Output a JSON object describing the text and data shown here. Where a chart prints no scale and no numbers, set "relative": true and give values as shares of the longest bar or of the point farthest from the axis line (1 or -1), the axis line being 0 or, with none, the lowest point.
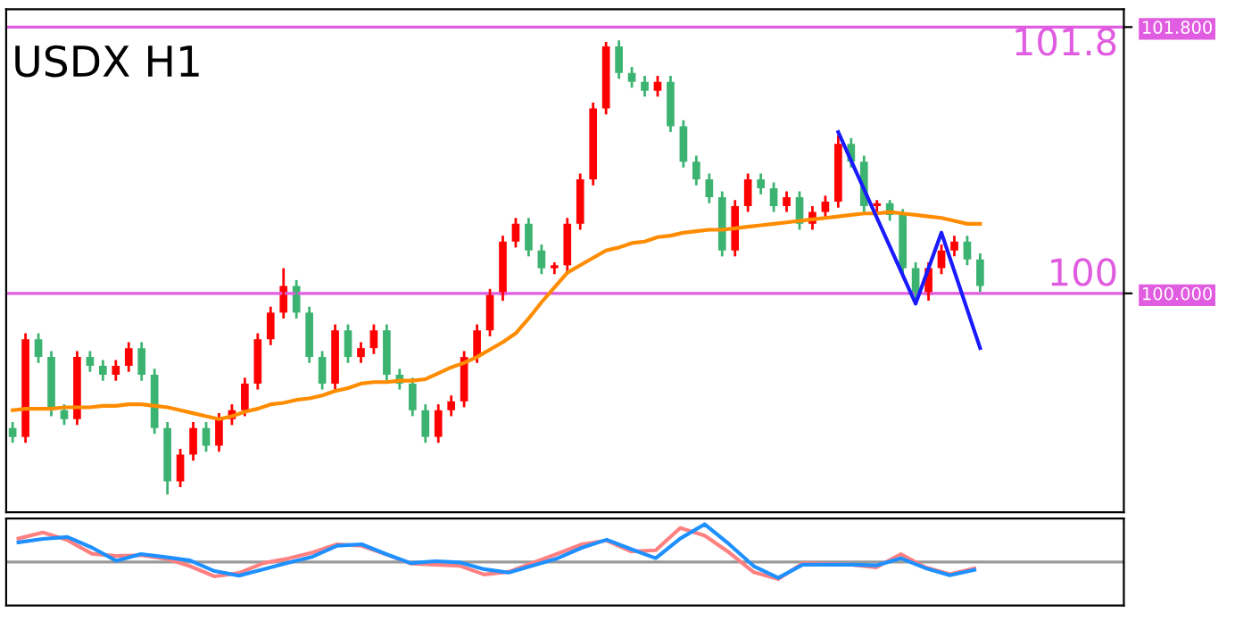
{
  "chart_data": [
    {
      "type": "candlestick",
      "title": "USDX H1",
      "categories": [
        null,
        null,
        null,
        null,
        null,
        null,
        null,
        null,
        null,
        null,
        null,
        null,
        null,
        null,
        null,
        null,
        null,
        null,
        null,
        null,
        null,
        null,
        null,
        null,
        null,
        null,
        null,
        null,
        null,
        null,
        null,
        null,
        null,
        null,
        null,
        null,
        null,
        null,
        null,
        null,
        null,
        null,
        null,
        null,
        null,
        null,
        null,
        null,
        null,
        null,
        null,
        null,
        null,
        null,
        null,
        null,
        null,
        null,
        null,
        null,
        null,
        null,
        null,
        null,
        null,
        null,
        null,
        null,
        null,
        null,
        null,
        null,
        null,
        null,
        null,
        null
      ],
      "ohlc": [
        [
          99.09,
          99.13,
          98.99,
          99.03
        ],
        [
          99.03,
          99.73,
          98.99,
          99.69
        ],
        [
          99.69,
          99.73,
          99.53,
          99.57
        ],
        [
          99.57,
          99.61,
          99.17,
          99.21
        ],
        [
          99.21,
          99.25,
          99.11,
          99.15
        ],
        [
          99.15,
          99.61,
          99.11,
          99.57
        ],
        [
          99.57,
          99.61,
          99.47,
          99.51
        ],
        [
          99.51,
          99.55,
          99.41,
          99.45
        ],
        [
          99.45,
          99.55,
          99.41,
          99.51
        ],
        [
          99.51,
          99.67,
          99.47,
          99.63
        ],
        [
          99.63,
          99.67,
          99.41,
          99.45
        ],
        [
          99.45,
          99.49,
          99.05,
          99.09
        ],
        [
          99.09,
          99.13,
          98.64,
          98.73
        ],
        [
          98.73,
          98.95,
          98.69,
          98.91
        ],
        [
          98.91,
          99.13,
          98.87,
          99.09
        ],
        [
          99.09,
          99.13,
          98.93,
          98.97
        ],
        [
          98.97,
          99.19,
          98.93,
          99.15
        ],
        [
          99.15,
          99.25,
          99.11,
          99.21
        ],
        [
          99.21,
          99.43,
          99.17,
          99.39
        ],
        [
          99.39,
          99.73,
          99.35,
          99.69
        ],
        [
          99.69,
          99.91,
          99.65,
          99.87
        ],
        [
          99.87,
          100.17,
          99.83,
          100.05
        ],
        [
          100.05,
          100.09,
          99.83,
          99.87
        ],
        [
          99.87,
          99.91,
          99.53,
          99.57
        ],
        [
          99.57,
          99.61,
          99.35,
          99.39
        ],
        [
          99.39,
          99.79,
          99.35,
          99.75
        ],
        [
          99.75,
          99.79,
          99.53,
          99.57
        ],
        [
          99.57,
          99.67,
          99.53,
          99.63
        ],
        [
          99.63,
          99.79,
          99.59,
          99.75
        ],
        [
          99.75,
          99.79,
          99.41,
          99.45
        ],
        [
          99.45,
          99.49,
          99.35,
          99.39
        ],
        [
          99.39,
          99.43,
          99.17,
          99.21
        ],
        [
          99.21,
          99.25,
          98.99,
          99.03
        ],
        [
          99.03,
          99.25,
          98.99,
          99.21
        ],
        [
          99.21,
          99.31,
          99.17,
          99.27
        ],
        [
          99.27,
          99.61,
          99.23,
          99.57
        ],
        [
          99.57,
          99.79,
          99.53,
          99.75
        ],
        [
          99.75,
          100.03,
          99.71,
          99.99
        ],
        [
          99.99,
          100.39,
          99.95,
          100.35
        ],
        [
          100.35,
          100.51,
          100.31,
          100.47
        ],
        [
          100.47,
          100.51,
          100.25,
          100.29
        ],
        [
          100.29,
          100.33,
          100.13,
          100.17
        ],
        [
          100.17,
          100.21,
          100.13,
          100.19
        ],
        [
          100.19,
          100.51,
          100.13,
          100.47
        ],
        [
          100.47,
          100.81,
          100.43,
          100.77
        ],
        [
          100.77,
          101.29,
          100.73,
          101.25
        ],
        [
          101.25,
          101.7,
          101.21,
          101.67
        ],
        [
          101.67,
          101.71,
          101.45,
          101.49
        ],
        [
          101.49,
          101.53,
          101.39,
          101.43
        ],
        [
          101.43,
          101.47,
          101.33,
          101.37
        ],
        [
          101.37,
          101.47,
          101.33,
          101.43
        ],
        [
          101.43,
          101.47,
          101.09,
          101.13
        ],
        [
          101.13,
          101.17,
          100.85,
          100.89
        ],
        [
          100.89,
          100.93,
          100.73,
          100.77
        ],
        [
          100.77,
          100.81,
          100.61,
          100.65
        ],
        [
          100.65,
          100.69,
          100.25,
          100.29
        ],
        [
          100.29,
          100.63,
          100.25,
          100.59
        ],
        [
          100.59,
          100.81,
          100.55,
          100.77
        ],
        [
          100.77,
          100.81,
          100.67,
          100.71
        ],
        [
          100.71,
          100.75,
          100.55,
          100.59
        ],
        [
          100.59,
          100.69,
          100.55,
          100.65
        ],
        [
          100.65,
          100.69,
          100.43,
          100.47
        ],
        [
          100.47,
          100.59,
          100.43,
          100.55
        ],
        [
          100.55,
          100.66,
          100.51,
          100.62
        ],
        [
          100.62,
          101.07,
          100.58,
          101.01
        ],
        [
          101.01,
          101.05,
          100.85,
          100.89
        ],
        [
          100.89,
          100.93,
          100.55,
          100.59
        ],
        [
          100.59,
          100.63,
          100.55,
          100.61
        ],
        [
          100.61,
          100.63,
          100.49,
          100.53
        ],
        [
          100.53,
          100.57,
          100.13,
          100.17
        ],
        [
          100.17,
          100.21,
          99.96,
          99.99
        ],
        [
          99.99,
          100.21,
          99.95,
          100.17
        ],
        [
          100.17,
          100.33,
          100.13,
          100.29
        ],
        [
          100.29,
          100.39,
          100.25,
          100.35
        ],
        [
          100.35,
          100.39,
          100.19,
          100.23
        ],
        [
          100.23,
          100.27,
          100.01,
          100.05
        ]
      ],
      "colors": [
        "#3cb371",
        "#ff0000",
        "#3cb371",
        "#3cb371",
        "#3cb371",
        "#ff0000",
        "#3cb371",
        "#3cb371",
        "#ff0000",
        "#ff0000",
        "#3cb371",
        "#3cb371",
        "#3cb371",
        "#ff0000",
        "#ff0000",
        "#3cb371",
        "#ff0000",
        "#ff0000",
        "#ff0000",
        "#ff0000",
        "#ff0000",
        "#ff0000",
        "#3cb371",
        "#3cb371",
        "#3cb371",
        "#ff0000",
        "#3cb371",
        "#ff0000",
        "#ff0000",
        "#3cb371",
        "#3cb371",
        "#3cb371",
        "#3cb371",
        "#ff0000",
        "#ff0000",
        "#ff0000",
        "#ff0000",
        "#ff0000",
        "#ff0000",
        "#ff0000",
        "#3cb371",
        "#3cb371",
        "#ff0000",
        "#ff0000",
        "#ff0000",
        "#ff0000",
        "#ff0000",
        "#3cb371",
        "#3cb371",
        "#3cb371",
        "#ff0000",
        "#3cb371",
        "#3cb371",
        "#3cb371",
        "#3cb371",
        "#3cb371",
        "#ff0000",
        "#ff0000",
        "#3cb371",
        "#3cb371",
        "#ff0000",
        "#3cb371",
        "#ff0000",
        "#ff0000",
        "#ff0000",
        "#3cb371",
        "#3cb371",
        "#ff0000",
        "#3cb371",
        "#3cb371",
        "#3cb371",
        "#ff0000",
        "#ff0000",
        "#ff0000",
        "#3cb371",
        "#3cb371"
      ],
      "series": [
        {
          "type": "line",
          "color": "#ff8c00",
          "values": [
            99.21,
            99.22,
            99.22,
            99.22,
            99.23,
            99.23,
            99.23,
            99.24,
            99.24,
            99.25,
            99.25,
            99.24,
            99.23,
            99.21,
            99.19,
            99.17,
            99.15,
            99.17,
            99.2,
            99.22,
            99.25,
            99.26,
            99.28,
            99.29,
            99.31,
            99.34,
            99.36,
            99.39,
            99.4,
            99.4,
            99.41,
            99.41,
            99.42,
            99.46,
            99.5,
            99.53,
            99.57,
            99.62,
            99.67,
            99.73,
            99.83,
            99.94,
            100.04,
            100.14,
            100.19,
            100.24,
            100.29,
            100.31,
            100.34,
            100.35,
            100.38,
            100.39,
            100.41,
            100.42,
            100.43,
            100.43,
            100.44,
            100.45,
            100.46,
            100.47,
            100.48,
            100.49,
            100.5,
            100.51,
            100.52,
            100.53,
            100.54,
            100.54,
            100.55,
            100.54,
            100.53,
            100.52,
            100.51,
            100.49,
            100.47,
            100.47
          ]
        },
        {
          "type": "line",
          "color": "#1a1aff",
          "values": [
            null,
            null,
            null,
            null,
            null,
            null,
            null,
            null,
            null,
            null,
            null,
            null,
            null,
            null,
            null,
            null,
            null,
            null,
            null,
            null,
            null,
            null,
            null,
            null,
            null,
            null,
            null,
            null,
            null,
            null,
            null,
            null,
            null,
            null,
            null,
            null,
            null,
            null,
            null,
            null,
            null,
            null,
            null,
            null,
            null,
            null,
            null,
            null,
            null,
            null,
            null,
            null,
            null,
            null,
            null,
            null,
            null,
            null,
            null,
            null,
            null,
            null,
            null,
            null,
            101.09,
            null,
            null,
            null,
            null,
            null,
            99.93,
            null,
            100.41,
            null,
            null,
            99.63
          ]
        }
      ],
      "ylim": [
        98.52,
        101.92
      ],
      "yticks": [
        {
          "value": 100,
          "label": "100.000"
        },
        {
          "value": 101.8,
          "label": "101.800"
        }
      ],
      "tick_labels": "y",
      "ref_lines": [
        {
          "axis": "y",
          "value": 101.8,
          "label": "101.8",
          "color": "#e05ce0"
        },
        {
          "axis": "y",
          "value": 100,
          "label": "100",
          "color": "#e05ce0"
        }
      ]
    },
    {
      "type": "line",
      "relative": true,
      "categories": [
        null,
        null,
        null,
        null,
        null,
        null,
        null,
        null,
        null,
        null,
        null,
        null,
        null,
        null,
        null,
        null,
        null,
        null,
        null,
        null,
        null,
        null,
        null,
        null,
        null,
        null,
        null,
        null,
        null,
        null,
        null,
        null,
        null,
        null,
        null,
        null,
        null,
        null,
        null,
        null
      ],
      "series": [
        {
          "color": "#ff8080",
          "values": [
            0.62,
            0.78,
            0.58,
            0.22,
            0.16,
            0.18,
            0.09,
            -0.11,
            -0.38,
            -0.29,
            -0.03,
            0.09,
            0.25,
            0.47,
            0.43,
            0.2,
            -0.04,
            -0.07,
            -0.1,
            -0.33,
            -0.26,
            -0.02,
            0.22,
            0.47,
            0.57,
            0.28,
            0.31,
            0.9,
            0.7,
            0.25,
            -0.27,
            -0.45,
            -0.03,
            -0.05,
            -0.07,
            -0.14,
            0.21,
            -0.14,
            -0.32,
            -0.17
          ]
        },
        {
          "color": "#1e90ff",
          "values": [
            0.52,
            0.61,
            0.66,
            0.38,
            0.03,
            0.21,
            0.13,
            0.04,
            -0.24,
            -0.36,
            -0.19,
            -0.02,
            0.14,
            0.43,
            0.47,
            0.21,
            -0.03,
            0.02,
            -0.01,
            -0.19,
            -0.28,
            -0.09,
            0.1,
            0.38,
            0.59,
            0.34,
            0.1,
            0.62,
            1,
            0.47,
            -0.11,
            -0.42,
            -0.07,
            -0.07,
            -0.07,
            -0.09,
            0.1,
            -0.16,
            -0.35,
            -0.21
          ]
        }
      ],
      "tick_labels": false,
      "ref_lines": [
        {
          "axis": "y",
          "value": 0,
          "color": "#999999"
        }
      ]
    }
  ]
}
